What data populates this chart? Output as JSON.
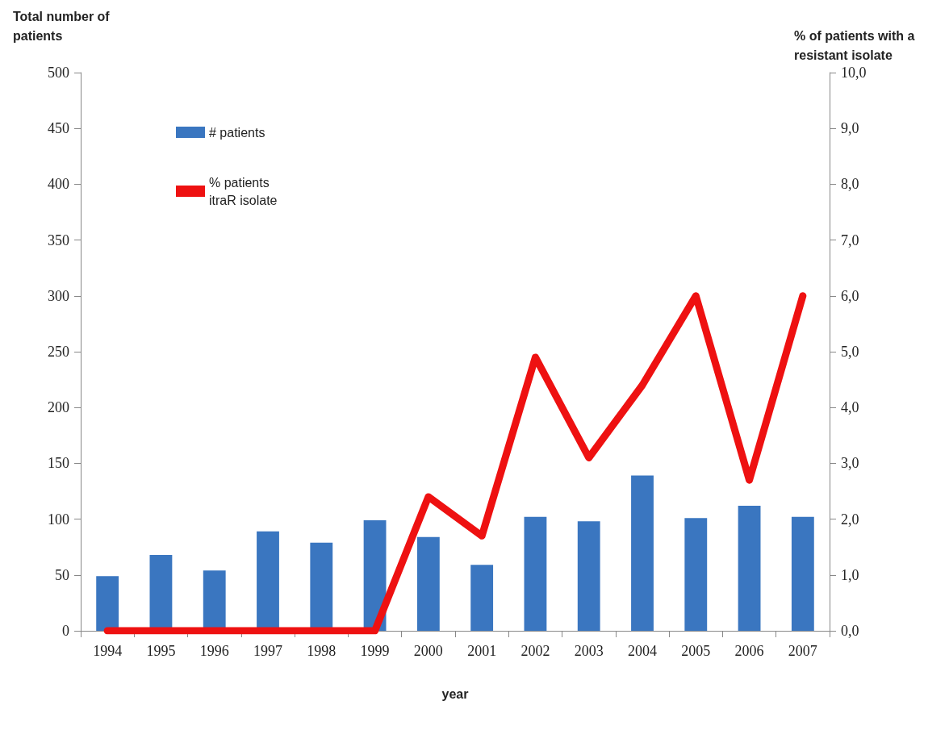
{
  "chart_data": {
    "type": "bar",
    "xlabel": "year",
    "ylabel": "Total number of patients",
    "y2label": "% of patients with a resistant isolate",
    "categories": [
      "1994",
      "1995",
      "1996",
      "1997",
      "1998",
      "1999",
      "2000",
      "2001",
      "2002",
      "2003",
      "2004",
      "2005",
      "2006",
      "2007"
    ],
    "series": [
      {
        "name": "# patients",
        "color": "#3a76c0",
        "values": [
          49,
          68,
          54,
          89,
          79,
          99,
          84,
          59,
          102,
          98,
          139,
          101,
          112,
          102
        ]
      },
      {
        "name": "% patients itraR isolate",
        "type": "line",
        "axis": "y2",
        "color": "#ee1111",
        "values": [
          0,
          0,
          0,
          0,
          0,
          0,
          2.4,
          1.7,
          4.9,
          3.1,
          4.4,
          6.0,
          2.7,
          6.0
        ]
      }
    ],
    "ylim": [
      0,
      500
    ],
    "yticks": [
      0,
      50,
      100,
      150,
      200,
      250,
      300,
      350,
      400,
      450,
      500
    ],
    "y2lim": [
      0,
      10
    ],
    "y2ticks": [
      {
        "value": 0,
        "label": "0,0"
      },
      {
        "value": 1,
        "label": "1,0"
      },
      {
        "value": 2,
        "label": "2,0"
      },
      {
        "value": 3,
        "label": "3,0"
      },
      {
        "value": 4,
        "label": "4,0"
      },
      {
        "value": 5,
        "label": "5,0"
      },
      {
        "value": 6,
        "label": "6,0"
      },
      {
        "value": 7,
        "label": "7,0"
      },
      {
        "value": 8,
        "label": "8,0"
      },
      {
        "value": 9,
        "label": "9,0"
      },
      {
        "value": 10,
        "label": "10,0"
      }
    ],
    "grid": false,
    "legend": "top left"
  }
}
